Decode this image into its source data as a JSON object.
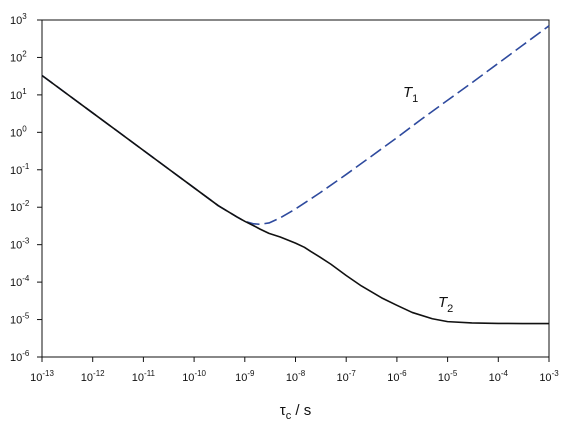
{
  "chart_data": {
    "type": "line",
    "xscale": "log",
    "yscale": "log",
    "xlim": [
      1e-13,
      0.001
    ],
    "ylim": [
      1e-06,
      1000.0
    ],
    "grid": false,
    "xlabel": {
      "main": "τ",
      "sub": "c",
      "rest": " / s"
    },
    "x_ticks": [
      {
        "base": "10",
        "exp": "-13"
      },
      {
        "base": "10",
        "exp": "-12"
      },
      {
        "base": "10",
        "exp": "-11"
      },
      {
        "base": "10",
        "exp": "-10"
      },
      {
        "base": "10",
        "exp": "-9"
      },
      {
        "base": "10",
        "exp": "-8"
      },
      {
        "base": "10",
        "exp": "-7"
      },
      {
        "base": "10",
        "exp": "-6"
      },
      {
        "base": "10",
        "exp": "-5"
      },
      {
        "base": "10",
        "exp": "-4"
      },
      {
        "base": "10",
        "exp": "-3"
      }
    ],
    "y_ticks": [
      {
        "base": "10",
        "exp": "3"
      },
      {
        "base": "10",
        "exp": "2"
      },
      {
        "base": "10",
        "exp": "1"
      },
      {
        "base": "10",
        "exp": "0"
      },
      {
        "base": "10",
        "exp": "-1"
      },
      {
        "base": "10",
        "exp": "-2"
      },
      {
        "base": "10",
        "exp": "-3"
      },
      {
        "base": "10",
        "exp": "-4"
      },
      {
        "base": "10",
        "exp": "-5"
      },
      {
        "base": "10",
        "exp": "-6"
      }
    ],
    "series": [
      {
        "name": "T1",
        "label": {
          "main": "T",
          "sub": "1"
        },
        "color": "#2e4a9e",
        "style": "dashed",
        "x": [
          1e-13,
          3e-13,
          1e-12,
          3e-12,
          1e-11,
          3e-11,
          1e-10,
          3e-10,
          7e-10,
          1e-09,
          1.5e-09,
          2e-09,
          3e-09,
          5e-09,
          1e-08,
          3e-08,
          1e-07,
          3e-07,
          1e-06,
          3e-06,
          1e-05,
          3e-05,
          0.0001,
          0.0003,
          0.001
        ],
        "y": [
          33,
          11,
          3.3,
          1.1,
          0.33,
          0.11,
          0.033,
          0.011,
          0.0055,
          0.0042,
          0.0036,
          0.0035,
          0.0038,
          0.0052,
          0.009,
          0.024,
          0.075,
          0.22,
          0.72,
          2.2,
          7.2,
          21,
          70,
          210,
          700
        ]
      },
      {
        "name": "T2",
        "label": {
          "main": "T",
          "sub": "2"
        },
        "color": "#111111",
        "style": "solid",
        "x": [
          1e-13,
          3e-13,
          1e-12,
          3e-12,
          1e-11,
          3e-11,
          1e-10,
          3e-10,
          7e-10,
          1e-09,
          1.5e-09,
          2e-09,
          3e-09,
          5e-09,
          1e-08,
          1.5e-08,
          2e-08,
          3e-08,
          5e-08,
          1e-07,
          2e-07,
          5e-07,
          1e-06,
          2e-06,
          5e-06,
          1e-05,
          3e-05,
          0.0001,
          0.0003,
          0.001
        ],
        "y": [
          33,
          11,
          3.3,
          1.1,
          0.33,
          0.11,
          0.033,
          0.011,
          0.0055,
          0.0042,
          0.0032,
          0.0026,
          0.002,
          0.0016,
          0.0011,
          0.00085,
          0.00066,
          0.00047,
          0.0003,
          0.00015,
          7.88e-05,
          3.8e-05,
          2.4e-05,
          1.55e-05,
          1.05e-05,
          8.8e-06,
          8.1e-06,
          7.9e-06,
          7.8e-06,
          7.8e-06
        ]
      }
    ]
  }
}
